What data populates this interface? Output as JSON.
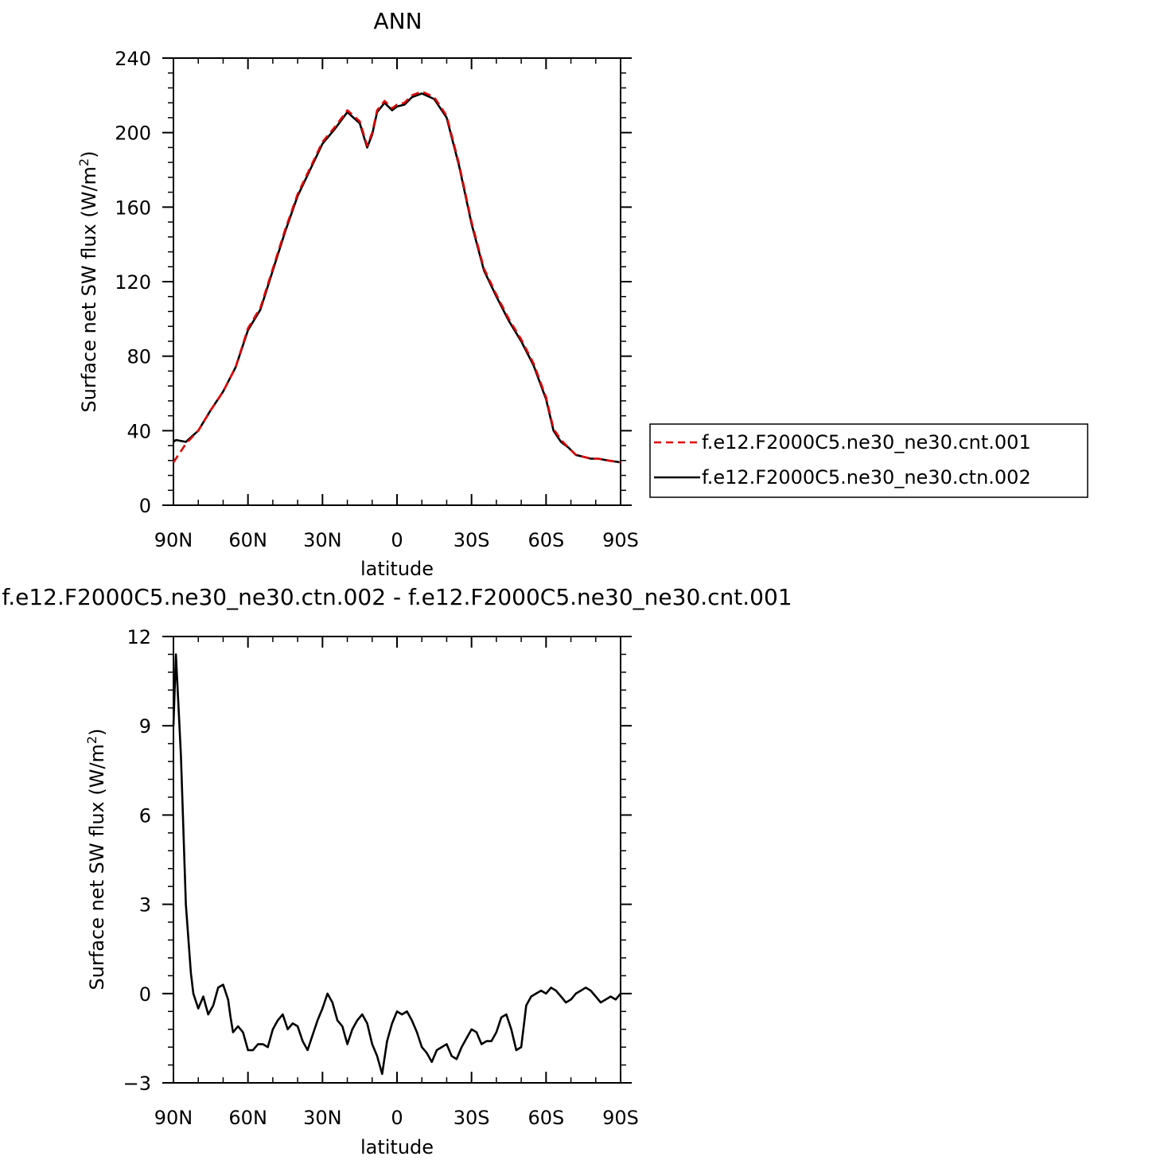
{
  "chart_data": [
    {
      "type": "line",
      "title": "ANN",
      "xlabel": "latitude",
      "ylabel": "Surface net SW flux (W/m²)",
      "ylabel_main": "Surface net SW flux (W/m",
      "ylabel_sup": "2",
      "ylabel_close": ")",
      "xlim": [
        90,
        -90
      ],
      "ylim": [
        0,
        240
      ],
      "xticks": [
        {
          "value": 90,
          "label": "90N"
        },
        {
          "value": 60,
          "label": "60N"
        },
        {
          "value": 30,
          "label": "30N"
        },
        {
          "value": 0,
          "label": "0"
        },
        {
          "value": -30,
          "label": "30S"
        },
        {
          "value": -60,
          "label": "60S"
        },
        {
          "value": -90,
          "label": "90S"
        }
      ],
      "yticks": [
        {
          "value": 0,
          "label": "0"
        },
        {
          "value": 40,
          "label": "40"
        },
        {
          "value": 80,
          "label": "80"
        },
        {
          "value": 120,
          "label": "120"
        },
        {
          "value": 160,
          "label": "160"
        },
        {
          "value": 200,
          "label": "200"
        },
        {
          "value": 240,
          "label": "240"
        }
      ],
      "grid": false,
      "legend_position": "right",
      "series": [
        {
          "name": "f.e12.F2000C5.ne30_ne30.cnt.001",
          "color": "#e00000",
          "dash": "dashed",
          "x": [
            90,
            85,
            80,
            75,
            70,
            65,
            60,
            55,
            50,
            45,
            40,
            35,
            30,
            25,
            20,
            15,
            12,
            10,
            8,
            5,
            2,
            0,
            -3,
            -6,
            -10,
            -15,
            -20,
            -25,
            -30,
            -35,
            -40,
            -45,
            -50,
            -55,
            -60,
            -63,
            -66,
            -69,
            -72,
            -75,
            -78,
            -81,
            -85,
            -90
          ],
          "y": [
            23,
            33,
            40,
            51,
            61,
            74,
            95,
            106,
            127,
            148,
            167,
            181,
            195,
            203,
            212,
            206,
            193,
            200,
            212,
            217,
            213,
            215,
            216,
            220,
            222,
            219,
            209,
            183,
            152,
            127,
            113,
            100,
            89,
            76,
            58,
            41,
            35,
            31,
            27,
            26,
            25,
            25,
            24,
            23
          ]
        },
        {
          "name": "f.e12.F2000C5.ne30_ne30.ctn.002",
          "color": "#000000",
          "dash": "solid",
          "x": [
            90,
            89,
            85,
            80,
            75,
            70,
            65,
            60,
            55,
            50,
            45,
            40,
            35,
            30,
            25,
            20,
            15,
            12,
            10,
            8,
            5,
            2,
            0,
            -3,
            -6,
            -10,
            -15,
            -20,
            -25,
            -30,
            -35,
            -40,
            -45,
            -50,
            -55,
            -60,
            -63,
            -66,
            -69,
            -72,
            -75,
            -78,
            -81,
            -85,
            -90
          ],
          "y": [
            34,
            35,
            34,
            40,
            51,
            61,
            74,
            94,
            105,
            126,
            147,
            166,
            180,
            194,
            202,
            211,
            205,
            192,
            199,
            211,
            216,
            212,
            214,
            215,
            219,
            221,
            218,
            208,
            182,
            151,
            126,
            112,
            99,
            88,
            75,
            57,
            40,
            34,
            31,
            27,
            26,
            25,
            25,
            24,
            23
          ]
        }
      ]
    },
    {
      "type": "line",
      "title": "f.e12.F2000C5.ne30_ne30.ctn.002 - f.e12.F2000C5.ne30_ne30.cnt.001",
      "xlabel": "latitude",
      "ylabel": "Surface net SW flux (W/m²)",
      "ylabel_main": "Surface net SW flux (W/m",
      "ylabel_sup": "2",
      "ylabel_close": ")",
      "xlim": [
        90,
        -90
      ],
      "ylim": [
        -3,
        12
      ],
      "xticks": [
        {
          "value": 90,
          "label": "90N"
        },
        {
          "value": 60,
          "label": "60N"
        },
        {
          "value": 30,
          "label": "30N"
        },
        {
          "value": 0,
          "label": "0"
        },
        {
          "value": -30,
          "label": "30S"
        },
        {
          "value": -60,
          "label": "60S"
        },
        {
          "value": -90,
          "label": "90S"
        }
      ],
      "yticks": [
        {
          "value": -3,
          "label": "−3"
        },
        {
          "value": 0,
          "label": "0"
        },
        {
          "value": 3,
          "label": "3"
        },
        {
          "value": 6,
          "label": "6"
        },
        {
          "value": 9,
          "label": "9"
        },
        {
          "value": 12,
          "label": "12"
        }
      ],
      "grid": false,
      "series": [
        {
          "color": "#000000",
          "dash": "solid",
          "x": [
            90,
            89,
            87,
            85,
            83,
            82,
            80,
            78,
            76,
            74,
            72,
            70,
            68,
            67,
            66,
            64,
            62,
            60,
            58,
            56,
            54,
            52,
            50,
            48,
            46,
            44,
            42,
            40,
            38,
            36,
            34,
            32,
            30,
            28,
            26,
            24,
            22,
            20,
            18,
            16,
            14,
            12,
            10,
            8,
            6,
            4,
            2,
            0,
            -2,
            -4,
            -6,
            -8,
            -10,
            -12,
            -14,
            -16,
            -18,
            -20,
            -22,
            -24,
            -26,
            -28,
            -30,
            -32,
            -34,
            -36,
            -38,
            -40,
            -42,
            -44,
            -46,
            -48,
            -50,
            -52,
            -54,
            -56,
            -58,
            -60,
            -62,
            -64,
            -66,
            -68,
            -70,
            -72,
            -74,
            -76,
            -78,
            -80,
            -82,
            -84,
            -86,
            -88,
            -90
          ],
          "y": [
            9.0,
            11.4,
            8.0,
            3.0,
            0.7,
            0.0,
            -0.5,
            -0.1,
            -0.7,
            -0.4,
            0.2,
            0.3,
            -0.2,
            -0.8,
            -1.3,
            -1.1,
            -1.3,
            -1.9,
            -1.9,
            -1.7,
            -1.7,
            -1.8,
            -1.2,
            -0.9,
            -0.7,
            -1.2,
            -1.0,
            -1.1,
            -1.6,
            -1.9,
            -1.4,
            -0.9,
            -0.5,
            0.0,
            -0.3,
            -0.9,
            -1.1,
            -1.7,
            -1.2,
            -0.9,
            -0.7,
            -1.0,
            -1.7,
            -2.1,
            -2.7,
            -1.6,
            -1.0,
            -0.6,
            -0.7,
            -0.6,
            -0.9,
            -1.3,
            -1.8,
            -2.0,
            -2.3,
            -1.9,
            -1.8,
            -1.7,
            -2.1,
            -2.2,
            -1.8,
            -1.5,
            -1.2,
            -1.3,
            -1.7,
            -1.6,
            -1.6,
            -1.3,
            -0.8,
            -0.7,
            -1.2,
            -1.9,
            -1.8,
            -0.4,
            -0.1,
            0.0,
            0.1,
            0.0,
            0.2,
            0.1,
            -0.1,
            -0.3,
            -0.2,
            0.0,
            0.1,
            0.2,
            0.1,
            -0.1,
            -0.3,
            -0.2,
            -0.1,
            -0.2,
            0.0
          ]
        }
      ]
    }
  ]
}
